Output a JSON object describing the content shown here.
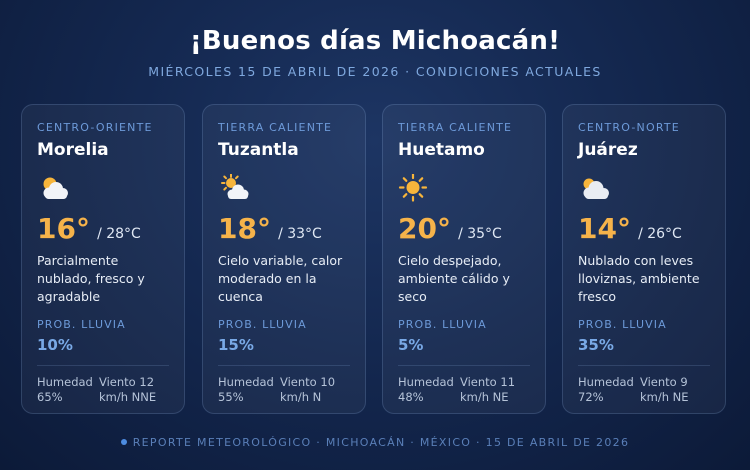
{
  "header": {
    "title": "¡Buenos días Michoacán!",
    "subtitle": "MIÉRCOLES 15 DE ABRIL DE 2026 · CONDICIONES ACTUALES"
  },
  "cards": [
    {
      "region": "CENTRO-ORIENTE",
      "city": "Morelia",
      "icon": "partly-cloudy-icon",
      "temp": "16°",
      "high": "/ 28°C",
      "description": "Parcialmente nublado, fresco y agradable",
      "rain_label": "PROB. LLUVIA",
      "rain_value": "10%",
      "humidity_label": "Humedad",
      "humidity_value": "65%",
      "wind_label": "Viento 12",
      "wind_value": "km/h NNE"
    },
    {
      "region": "TIERRA CALIENTE",
      "city": "Tuzantla",
      "icon": "sun-behind-cloud-icon",
      "temp": "18°",
      "high": "/ 33°C",
      "description": "Cielo variable, calor moderado en la cuenca",
      "rain_label": "PROB. LLUVIA",
      "rain_value": "15%",
      "humidity_label": "Humedad",
      "humidity_value": "55%",
      "wind_label": "Viento 10",
      "wind_value": "km/h N"
    },
    {
      "region": "TIERRA CALIENTE",
      "city": "Huetamo",
      "icon": "sun-icon",
      "temp": "20°",
      "high": "/ 35°C",
      "description": "Cielo despejado, ambiente cálido y seco",
      "rain_label": "PROB. LLUVIA",
      "rain_value": "5%",
      "humidity_label": "Humedad",
      "humidity_value": "48%",
      "wind_label": "Viento 11",
      "wind_value": "km/h NE"
    },
    {
      "region": "CENTRO-NORTE",
      "city": "Juárez",
      "icon": "cloudy-icon",
      "temp": "14°",
      "high": "/ 26°C",
      "description": "Nublado con leves lloviznas, ambiente fresco",
      "rain_label": "PROB. LLUVIA",
      "rain_value": "35%",
      "humidity_label": "Humedad",
      "humidity_value": "72%",
      "wind_label": "Viento 9",
      "wind_value": "km/h NE"
    }
  ],
  "footer": {
    "text": "REPORTE METEOROLÓGICO · MICHOACÁN · MÉXICO · 15 DE ABRIL DE 2026"
  },
  "colors": {
    "temperature": "#f6b34a",
    "accent": "#6d9ad9",
    "rain": "#79a9e6"
  }
}
